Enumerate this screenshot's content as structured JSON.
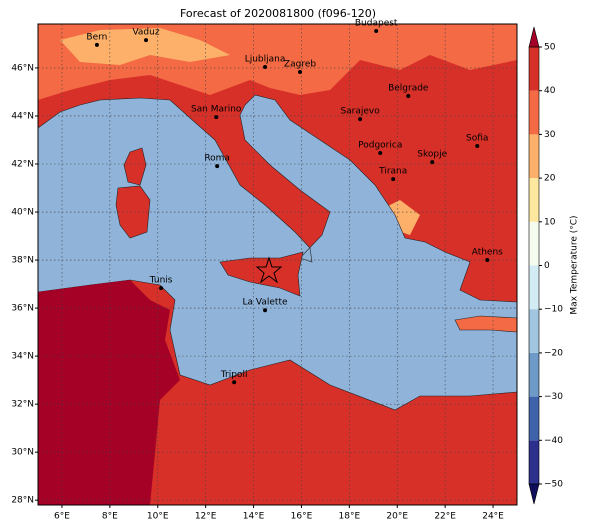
{
  "map": {
    "title": "Forecast of 2020081800 (f096-120)",
    "xlim": [
      5,
      25
    ],
    "ylim": [
      27.8,
      47.83
    ],
    "xticks": [
      {
        "value": 6,
        "label": "6°E"
      },
      {
        "value": 8,
        "label": "8°E"
      },
      {
        "value": 10,
        "label": "10°E"
      },
      {
        "value": 12,
        "label": "12°E"
      },
      {
        "value": 14,
        "label": "14°E"
      },
      {
        "value": 16,
        "label": "16°E"
      },
      {
        "value": 18,
        "label": "18°E"
      },
      {
        "value": 20,
        "label": "20°E"
      },
      {
        "value": 22,
        "label": "22°E"
      },
      {
        "value": 24,
        "label": "24°E"
      }
    ],
    "yticks": [
      {
        "value": 28,
        "label": "28°N"
      },
      {
        "value": 30,
        "label": "30°N"
      },
      {
        "value": 32,
        "label": "32°N"
      },
      {
        "value": 34,
        "label": "34°N"
      },
      {
        "value": 36,
        "label": "36°N"
      },
      {
        "value": 38,
        "label": "38°N"
      },
      {
        "value": 40,
        "label": "40°N"
      },
      {
        "value": 42,
        "label": "42°N"
      },
      {
        "value": 44,
        "label": "44°N"
      },
      {
        "value": 46,
        "label": "46°N"
      }
    ],
    "grid": true,
    "cities": [
      {
        "name": "Bern",
        "lon": 7.46,
        "lat": 46.96
      },
      {
        "name": "Vaduz",
        "lon": 9.51,
        "lat": 47.16
      },
      {
        "name": "Budapest",
        "lon": 19.12,
        "lat": 47.54
      },
      {
        "name": "Ljubljana",
        "lon": 14.48,
        "lat": 46.04
      },
      {
        "name": "Zagreb",
        "lon": 15.94,
        "lat": 45.83
      },
      {
        "name": "Belgrade",
        "lon": 20.46,
        "lat": 44.83
      },
      {
        "name": "San Marino",
        "lon": 12.44,
        "lat": 43.95
      },
      {
        "name": "Sarajevo",
        "lon": 18.45,
        "lat": 43.87
      },
      {
        "name": "Sofia",
        "lon": 23.34,
        "lat": 42.75
      },
      {
        "name": "Podgorica",
        "lon": 19.29,
        "lat": 42.46
      },
      {
        "name": "Roma",
        "lon": 12.48,
        "lat": 41.91
      },
      {
        "name": "Skopje",
        "lon": 21.46,
        "lat": 42.08
      },
      {
        "name": "Tirana",
        "lon": 19.83,
        "lat": 41.37
      },
      {
        "name": "Athens",
        "lon": 23.76,
        "lat": 38.0
      },
      {
        "name": "Tunis",
        "lon": 10.14,
        "lat": 36.83
      },
      {
        "name": "La Valette",
        "lon": 14.48,
        "lat": 35.91
      },
      {
        "name": "Tripoli",
        "lon": 13.19,
        "lat": 32.91
      }
    ],
    "colorbar": {
      "label": "Max Temperature (°C)",
      "lim": [
        -50,
        50
      ],
      "ticks": [
        {
          "value": -50,
          "label": "−50"
        },
        {
          "value": -40,
          "label": "−40"
        },
        {
          "value": -30,
          "label": "−30"
        },
        {
          "value": -20,
          "label": "−20"
        },
        {
          "value": -10,
          "label": "−10"
        },
        0,
        10,
        20,
        30,
        40,
        50
      ],
      "colors": [
        "#2c2f8c",
        "#3f63ab",
        "#6e9ac8",
        "#a3c6e0",
        "#d3ebf3",
        "#f6fbef",
        "#fee8a0",
        "#fdb06a",
        "#f36a44",
        "#d73028"
      ],
      "under": "#0f0f5c",
      "over": "#a50026"
    }
  }
}
